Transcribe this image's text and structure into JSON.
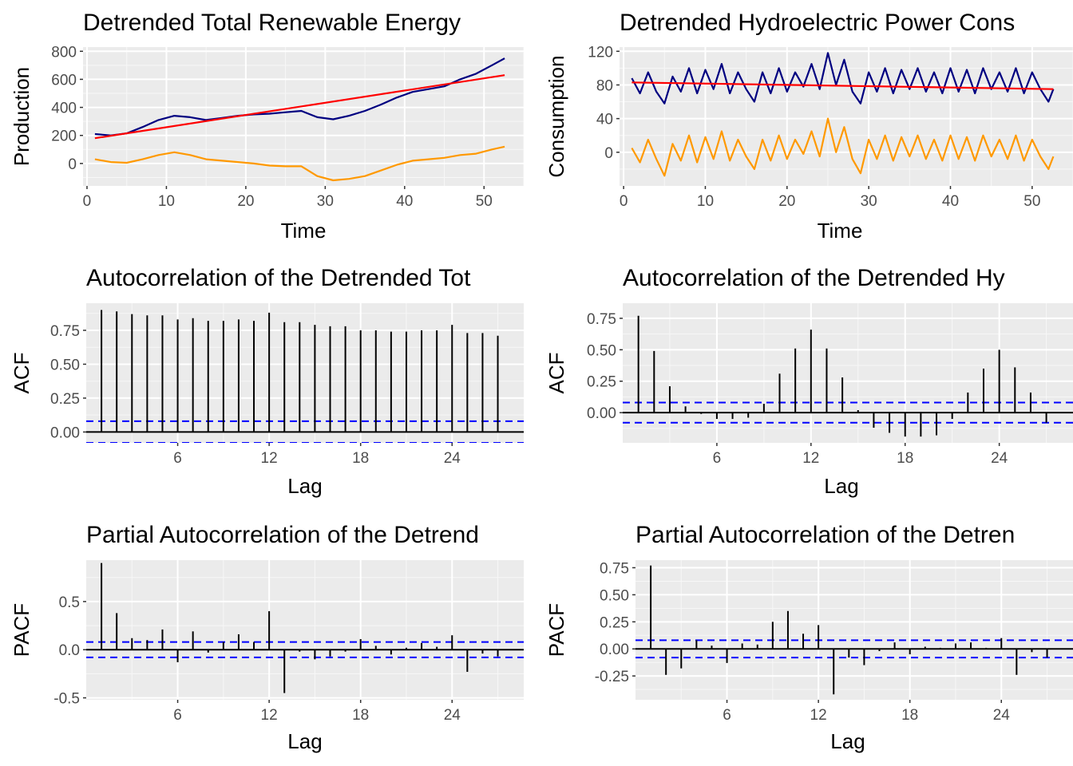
{
  "chart_data": [
    {
      "id": "p1",
      "type": "line",
      "title": "Detrended Total Renewable Energy",
      "xlabel": "Time",
      "ylabel": "Production",
      "xlim": [
        -0.5,
        55
      ],
      "ylim": [
        -160,
        830
      ],
      "xticks": [
        0,
        10,
        20,
        30,
        40,
        50
      ],
      "yticks": [
        0,
        200,
        400,
        600,
        800
      ],
      "series": [
        {
          "color": "#000080",
          "values": [
            [
              1,
              210
            ],
            [
              3,
              200
            ],
            [
              5,
              215
            ],
            [
              7,
              260
            ],
            [
              9,
              310
            ],
            [
              11,
              340
            ],
            [
              13,
              330
            ],
            [
              15,
              310
            ],
            [
              17,
              325
            ],
            [
              19,
              340
            ],
            [
              21,
              350
            ],
            [
              23,
              355
            ],
            [
              25,
              365
            ],
            [
              27,
              375
            ],
            [
              29,
              330
            ],
            [
              31,
              315
            ],
            [
              33,
              340
            ],
            [
              35,
              375
            ],
            [
              37,
              420
            ],
            [
              39,
              470
            ],
            [
              41,
              510
            ],
            [
              43,
              530
            ],
            [
              45,
              550
            ],
            [
              47,
              600
            ],
            [
              49,
              640
            ],
            [
              51,
              700
            ],
            [
              52.6,
              750
            ]
          ]
        },
        {
          "color": "#FF9900",
          "values": [
            [
              1,
              30
            ],
            [
              3,
              10
            ],
            [
              5,
              5
            ],
            [
              7,
              30
            ],
            [
              9,
              60
            ],
            [
              11,
              80
            ],
            [
              13,
              60
            ],
            [
              15,
              30
            ],
            [
              17,
              20
            ],
            [
              19,
              10
            ],
            [
              21,
              0
            ],
            [
              23,
              -15
            ],
            [
              25,
              -20
            ],
            [
              27,
              -20
            ],
            [
              29,
              -90
            ],
            [
              31,
              -120
            ],
            [
              33,
              -110
            ],
            [
              35,
              -90
            ],
            [
              37,
              -50
            ],
            [
              39,
              -10
            ],
            [
              41,
              20
            ],
            [
              43,
              30
            ],
            [
              45,
              40
            ],
            [
              47,
              60
            ],
            [
              49,
              70
            ],
            [
              51,
              100
            ],
            [
              52.6,
              120
            ]
          ]
        },
        {
          "color": "#FF0000",
          "values": [
            [
              1,
              180
            ],
            [
              52.6,
              630
            ]
          ]
        }
      ]
    },
    {
      "id": "p2",
      "type": "line",
      "title": "Detrended Hydroelectric Power Cons",
      "xlabel": "Time",
      "ylabel": "Consumption",
      "xlim": [
        -0.5,
        55
      ],
      "ylim": [
        -40,
        125
      ],
      "xticks": [
        0,
        10,
        20,
        30,
        40,
        50
      ],
      "yticks": [
        0,
        40,
        80,
        120
      ],
      "series": [
        {
          "color": "#000080",
          "values": [
            [
              1,
              88
            ],
            [
              2,
              70
            ],
            [
              3,
              95
            ],
            [
              4,
              72
            ],
            [
              5,
              58
            ],
            [
              6,
              90
            ],
            [
              7,
              72
            ],
            [
              8,
              100
            ],
            [
              9,
              70
            ],
            [
              10,
              98
            ],
            [
              11,
              75
            ],
            [
              12,
              105
            ],
            [
              13,
              70
            ],
            [
              14,
              95
            ],
            [
              15,
              75
            ],
            [
              16,
              60
            ],
            [
              17,
              95
            ],
            [
              18,
              70
            ],
            [
              19,
              100
            ],
            [
              20,
              72
            ],
            [
              21,
              95
            ],
            [
              22,
              78
            ],
            [
              23,
              105
            ],
            [
              24,
              75
            ],
            [
              25,
              118
            ],
            [
              26,
              80
            ],
            [
              27,
              110
            ],
            [
              28,
              72
            ],
            [
              29,
              58
            ],
            [
              30,
              95
            ],
            [
              31,
              72
            ],
            [
              32,
              100
            ],
            [
              33,
              70
            ],
            [
              34,
              98
            ],
            [
              35,
              75
            ],
            [
              36,
              100
            ],
            [
              37,
              72
            ],
            [
              38,
              95
            ],
            [
              39,
              70
            ],
            [
              40,
              100
            ],
            [
              41,
              72
            ],
            [
              42,
              98
            ],
            [
              43,
              70
            ],
            [
              44,
              100
            ],
            [
              45,
              75
            ],
            [
              46,
              95
            ],
            [
              47,
              72
            ],
            [
              48,
              100
            ],
            [
              49,
              70
            ],
            [
              50,
              95
            ],
            [
              51,
              75
            ],
            [
              52,
              60
            ],
            [
              52.6,
              75
            ]
          ]
        },
        {
          "color": "#FF9900",
          "values": [
            [
              1,
              5
            ],
            [
              2,
              -12
            ],
            [
              3,
              15
            ],
            [
              4,
              -8
            ],
            [
              5,
              -28
            ],
            [
              6,
              10
            ],
            [
              7,
              -10
            ],
            [
              8,
              20
            ],
            [
              9,
              -12
            ],
            [
              10,
              18
            ],
            [
              11,
              -8
            ],
            [
              12,
              25
            ],
            [
              13,
              -10
            ],
            [
              14,
              15
            ],
            [
              15,
              -5
            ],
            [
              16,
              -20
            ],
            [
              17,
              15
            ],
            [
              18,
              -10
            ],
            [
              19,
              20
            ],
            [
              20,
              -8
            ],
            [
              21,
              15
            ],
            [
              22,
              -2
            ],
            [
              23,
              25
            ],
            [
              24,
              -5
            ],
            [
              25,
              40
            ],
            [
              26,
              0
            ],
            [
              27,
              30
            ],
            [
              28,
              -8
            ],
            [
              29,
              -25
            ],
            [
              30,
              15
            ],
            [
              31,
              -8
            ],
            [
              32,
              20
            ],
            [
              33,
              -10
            ],
            [
              34,
              18
            ],
            [
              35,
              -5
            ],
            [
              36,
              20
            ],
            [
              37,
              -8
            ],
            [
              38,
              15
            ],
            [
              39,
              -10
            ],
            [
              40,
              20
            ],
            [
              41,
              -8
            ],
            [
              42,
              18
            ],
            [
              43,
              -10
            ],
            [
              44,
              20
            ],
            [
              45,
              -5
            ],
            [
              46,
              15
            ],
            [
              47,
              -8
            ],
            [
              48,
              20
            ],
            [
              49,
              -10
            ],
            [
              50,
              15
            ],
            [
              51,
              -5
            ],
            [
              52,
              -20
            ],
            [
              52.6,
              -5
            ]
          ]
        },
        {
          "color": "#FF0000",
          "values": [
            [
              1,
              83
            ],
            [
              52.6,
              75
            ]
          ]
        }
      ]
    },
    {
      "id": "p3",
      "type": "bar",
      "title": "Autocorrelation of the Detrended Tot",
      "xlabel": "Lag",
      "ylabel": "ACF",
      "xlim": [
        0,
        28.7
      ],
      "ylim": [
        -0.08,
        0.95
      ],
      "xticks": [
        6,
        12,
        18,
        24
      ],
      "yticks": [
        0,
        0.25,
        0.5,
        0.75
      ],
      "ytick_labels": [
        "0.00",
        "0.25",
        "0.50",
        "0.75"
      ],
      "ci": 0.08,
      "lags": [
        1,
        2,
        3,
        4,
        5,
        6,
        7,
        8,
        9,
        10,
        11,
        12,
        13,
        14,
        15,
        16,
        17,
        18,
        19,
        20,
        21,
        22,
        23,
        24,
        25,
        26,
        27
      ],
      "values": [
        0.9,
        0.89,
        0.87,
        0.86,
        0.86,
        0.83,
        0.84,
        0.82,
        0.82,
        0.83,
        0.82,
        0.88,
        0.81,
        0.81,
        0.79,
        0.78,
        0.78,
        0.75,
        0.75,
        0.74,
        0.74,
        0.75,
        0.75,
        0.79,
        0.73,
        0.73,
        0.71
      ]
    },
    {
      "id": "p4",
      "type": "bar",
      "title": "Autocorrelation of the Detrended Hy",
      "xlabel": "Lag",
      "ylabel": "ACF",
      "xlim": [
        0,
        28.7
      ],
      "ylim": [
        -0.24,
        0.87
      ],
      "xticks": [
        6,
        12,
        18,
        24
      ],
      "yticks": [
        0,
        0.25,
        0.5,
        0.75
      ],
      "ytick_labels": [
        "0.00",
        "0.25",
        "0.50",
        "0.75"
      ],
      "ci": 0.08,
      "lags": [
        1,
        2,
        3,
        4,
        5,
        6,
        7,
        8,
        9,
        10,
        11,
        12,
        13,
        14,
        15,
        16,
        17,
        18,
        19,
        20,
        21,
        22,
        23,
        24,
        25,
        26,
        27
      ],
      "values": [
        0.77,
        0.49,
        0.21,
        0.05,
        -0.01,
        -0.05,
        -0.05,
        -0.04,
        0.07,
        0.31,
        0.51,
        0.66,
        0.51,
        0.28,
        0.02,
        -0.12,
        -0.16,
        -0.19,
        -0.19,
        -0.18,
        -0.05,
        0.16,
        0.35,
        0.5,
        0.36,
        0.16,
        -0.08
      ]
    },
    {
      "id": "p5",
      "type": "bar",
      "title": "Partial Autocorrelation of the Detrend",
      "xlabel": "Lag",
      "ylabel": "PACF",
      "xlim": [
        0,
        28.7
      ],
      "ylim": [
        -0.52,
        0.93
      ],
      "xticks": [
        6,
        12,
        18,
        24
      ],
      "yticks": [
        -0.5,
        0,
        0.5
      ],
      "ytick_labels": [
        "-0.5",
        "0.0",
        "0.5"
      ],
      "ci": 0.08,
      "lags": [
        1,
        2,
        3,
        4,
        5,
        6,
        7,
        8,
        9,
        10,
        11,
        12,
        13,
        14,
        15,
        16,
        17,
        18,
        19,
        20,
        21,
        22,
        23,
        24,
        25,
        26,
        27
      ],
      "values": [
        0.9,
        0.38,
        0.12,
        0.1,
        0.21,
        -0.13,
        0.19,
        -0.03,
        0.08,
        0.16,
        0.08,
        0.4,
        -0.45,
        -0.02,
        -0.1,
        -0.07,
        -0.02,
        0.11,
        0.04,
        -0.05,
        0.02,
        0.07,
        0.03,
        0.15,
        -0.23,
        -0.04,
        -0.07
      ]
    },
    {
      "id": "p6",
      "type": "bar",
      "title": "Partial Autocorrelation of the Detren",
      "xlabel": "Lag",
      "ylabel": "PACF",
      "xlim": [
        0,
        28.7
      ],
      "ylim": [
        -0.47,
        0.82
      ],
      "xticks": [
        6,
        12,
        18,
        24
      ],
      "yticks": [
        -0.25,
        0,
        0.25,
        0.5,
        0.75
      ],
      "ytick_labels": [
        "-0.25",
        "0.00",
        "0.25",
        "0.50",
        "0.75"
      ],
      "ci": 0.08,
      "lags": [
        1,
        2,
        3,
        4,
        5,
        6,
        7,
        8,
        9,
        10,
        11,
        12,
        13,
        14,
        15,
        16,
        17,
        18,
        19,
        20,
        21,
        22,
        23,
        24,
        25,
        26,
        27
      ],
      "values": [
        0.77,
        -0.24,
        -0.18,
        0.08,
        0.03,
        -0.13,
        0.05,
        0.04,
        0.25,
        0.35,
        0.14,
        0.22,
        -0.42,
        -0.08,
        -0.15,
        -0.02,
        0.06,
        -0.05,
        0.02,
        0.01,
        0.05,
        0.06,
        0.01,
        0.1,
        -0.24,
        -0.03,
        -0.08
      ]
    }
  ]
}
